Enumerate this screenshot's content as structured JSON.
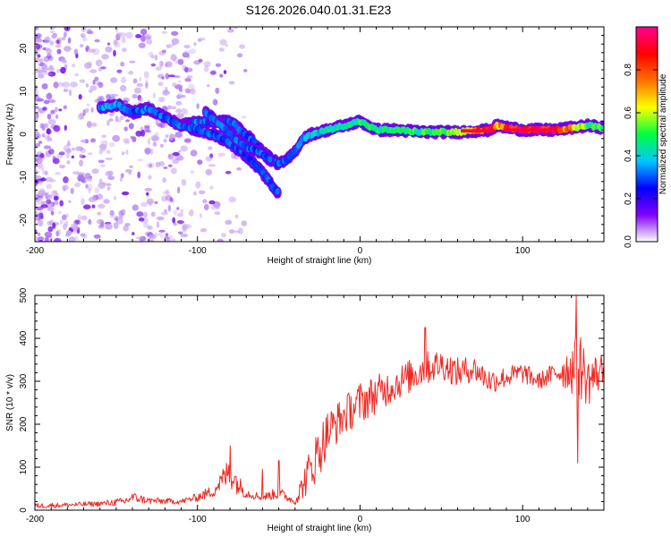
{
  "title": "S126.2026.040.01.31.E23",
  "colors": {
    "snr_line": "#ee2a24",
    "ridge_outer": "#6a00e8",
    "halo": "#c9a6f0",
    "axis": "#000000"
  },
  "chart_data": [
    {
      "type": "heatmap",
      "title": "S126.2026.040.01.31.E23",
      "xlabel": "Height of straight line (km)",
      "ylabel": "Frequency (Hz)",
      "xlim": [
        -200,
        150
      ],
      "ylim": [
        -25,
        25
      ],
      "xticks": [
        -200,
        -100,
        0,
        100
      ],
      "yticks": [
        -20,
        -10,
        0,
        10,
        20
      ],
      "colorbar": {
        "label": "Normalized spectral amplitude",
        "range": [
          0,
          1
        ],
        "ticks": [
          0.0,
          0.2,
          0.4,
          0.6,
          0.8
        ],
        "tick_labels": [
          "0.0",
          "0.2",
          "0.4",
          "0.6",
          "0.8"
        ],
        "stops": [
          "#ffffff",
          "#8000ff",
          "#0000ff",
          "#00c8ff",
          "#00ff40",
          "#ffff00",
          "#ff7000",
          "#ff0000",
          "#ff0090"
        ]
      },
      "ridge": {
        "x": [
          -160,
          -150,
          -140,
          -130,
          -120,
          -110,
          -100,
          -90,
          -80,
          -70,
          -60,
          -50,
          -45,
          -40,
          -35,
          -30,
          -20,
          -10,
          0,
          10,
          20,
          40,
          60,
          80,
          84,
          100,
          120,
          140,
          150
        ],
        "y": [
          6,
          7,
          5,
          6,
          4,
          2,
          3,
          3,
          3,
          0,
          -4,
          -7,
          -6,
          -4,
          -1,
          0,
          1,
          2,
          3,
          1,
          1,
          0.5,
          0.5,
          1,
          2,
          1,
          1,
          2,
          1.5
        ],
        "strength": [
          0.35,
          0.35,
          0.3,
          0.32,
          0.3,
          0.3,
          0.32,
          0.3,
          0.32,
          0.3,
          0.3,
          0.3,
          0.3,
          0.3,
          0.35,
          0.38,
          0.42,
          0.45,
          0.48,
          0.45,
          0.45,
          0.48,
          0.55,
          0.9,
          0.7,
          0.92,
          0.9,
          0.5,
          0.48
        ]
      },
      "branches": [
        {
          "x": [
            -108,
            -100,
            -90,
            -80,
            -70,
            -60,
            -50
          ],
          "y": [
            2,
            1,
            0,
            -2,
            -5,
            -9,
            -14
          ],
          "strength": 0.3
        },
        {
          "x": [
            -95,
            -88,
            -80,
            -70,
            -62,
            -55
          ],
          "y": [
            5,
            3,
            0,
            -3,
            -4,
            -6
          ],
          "strength": 0.3
        }
      ]
    },
    {
      "type": "line",
      "xlabel": "Height of straight line (km)",
      "ylabel": "SNR (10 * v/v)",
      "xlim": [
        -200,
        150
      ],
      "ylim": [
        0,
        500
      ],
      "xticks": [
        -200,
        -100,
        0,
        100
      ],
      "yticks": [
        0,
        100,
        200,
        300,
        400,
        500
      ],
      "series": [
        {
          "name": "SNR",
          "x": [
            -200,
            -180,
            -160,
            -145,
            -140,
            -130,
            -110,
            -100,
            -90,
            -85,
            -80,
            -75,
            -70,
            -60,
            -50,
            -45,
            -40,
            -35,
            -30,
            -25,
            -20,
            -10,
            0,
            10,
            20,
            30,
            40,
            50,
            60,
            70,
            80,
            90,
            100,
            110,
            120,
            130,
            135,
            140,
            150
          ],
          "y": [
            10,
            12,
            15,
            20,
            30,
            22,
            20,
            30,
            45,
            70,
            90,
            60,
            40,
            30,
            40,
            30,
            20,
            60,
            100,
            140,
            180,
            220,
            250,
            270,
            290,
            310,
            330,
            340,
            320,
            330,
            300,
            310,
            320,
            300,
            320,
            330,
            340,
            300,
            330
          ],
          "noise": [
            6,
            6,
            6,
            10,
            12,
            8,
            6,
            10,
            15,
            25,
            40,
            25,
            12,
            8,
            15,
            10,
            8,
            35,
            55,
            60,
            55,
            45,
            50,
            45,
            40,
            40,
            40,
            35,
            35,
            30,
            30,
            25,
            25,
            20,
            25,
            60,
            80,
            60,
            40
          ],
          "spikes": [
            {
              "x": -80,
              "y": 150
            },
            {
              "x": -60,
              "y": 95
            },
            {
              "x": -50,
              "y": 115
            },
            {
              "x": 40,
              "y": 425
            },
            {
              "x": 133,
              "y": 500
            },
            {
              "x": 134,
              "y": 110
            }
          ]
        }
      ]
    }
  ]
}
